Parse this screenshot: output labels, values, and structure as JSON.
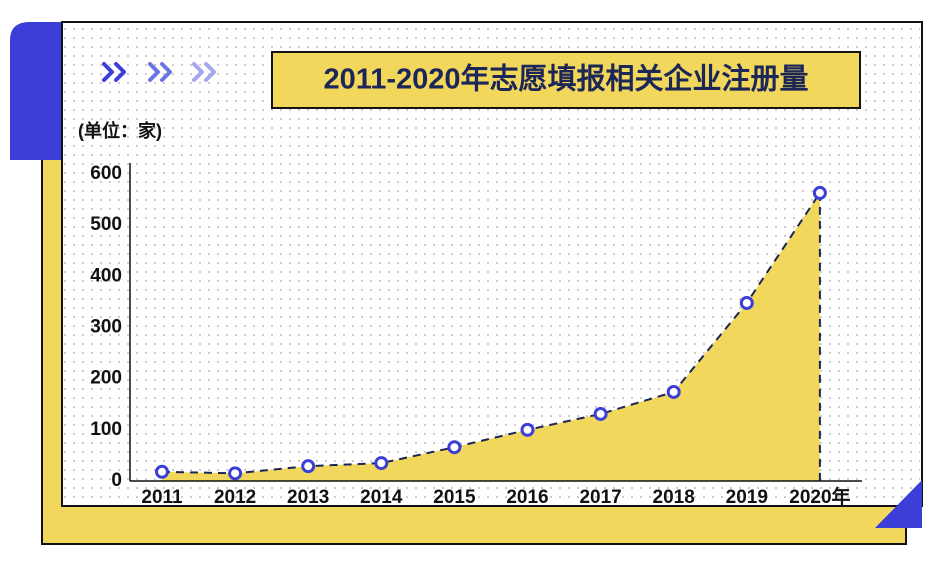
{
  "chart_data": {
    "type": "area",
    "title": "2011-2020年志愿填报相关企业注册量",
    "y_label": "(单位：家)",
    "categories": [
      "2011",
      "2012",
      "2013",
      "2014",
      "2015",
      "2016",
      "2017",
      "2018",
      "2019",
      "2020年"
    ],
    "values": [
      18,
      15,
      29,
      35,
      66,
      100,
      131,
      174,
      348,
      563
    ],
    "color": "#f1d85c",
    "line_color": "#1c2657",
    "marker_color": "#3b3fd8",
    "ylim": [
      0,
      600
    ],
    "yticks": [
      0,
      100,
      200,
      300,
      400,
      500,
      600
    ]
  }
}
